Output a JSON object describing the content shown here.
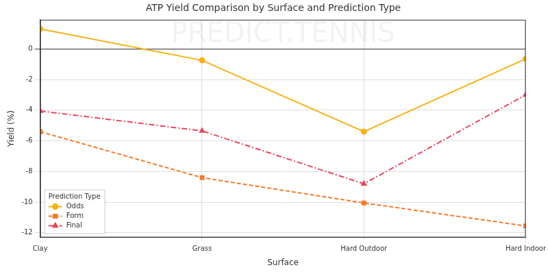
{
  "chart_data": {
    "type": "line",
    "title": "ATP Yield Comparison by Surface and Prediction Type",
    "annotations": [
      "PREDICT.TENNIS"
    ],
    "x_label": "Surface",
    "y_label": "Yield (%)",
    "categories": [
      "Clay",
      "Grass",
      "Hard Outdoor",
      "Hard Indoor"
    ],
    "series": [
      {
        "name": "Odds",
        "color": "#f5b116",
        "marker": "circle",
        "line_style": "solid",
        "values": [
          1.3,
          -0.75,
          -5.4,
          -0.65
        ]
      },
      {
        "name": "Form",
        "color": "#f27a2c",
        "marker": "square",
        "line_style": "dashed",
        "values": [
          -5.4,
          -8.4,
          -10.05,
          -11.55
        ]
      },
      {
        "name": "Final",
        "color": "#e8465e",
        "marker": "triangle",
        "line_style": "dashdot",
        "values": [
          -4.05,
          -5.35,
          -8.8,
          -3.0
        ]
      }
    ],
    "ylim": [
      -12.3,
      1.9
    ],
    "yticks": [
      -12,
      -10,
      -8,
      -6,
      -4,
      -2,
      0
    ],
    "grid": true,
    "legend": "lower left",
    "legend_title": "Prediction Type"
  }
}
